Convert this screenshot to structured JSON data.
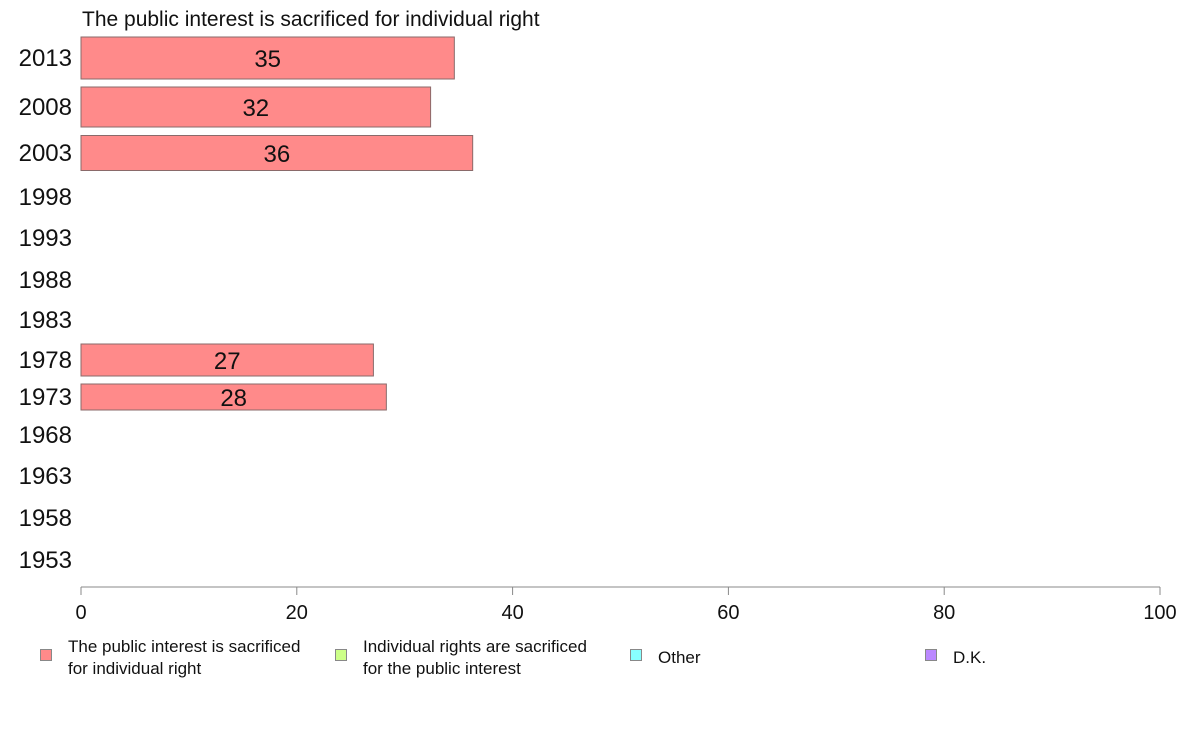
{
  "chart_data": {
    "type": "bar",
    "orientation": "horizontal",
    "title": "The public interest is sacrificed for individual right",
    "categories": [
      "2013",
      "2008",
      "2003",
      "1998",
      "1993",
      "1988",
      "1983",
      "1978",
      "1973",
      "1968",
      "1963",
      "1958",
      "1953"
    ],
    "series": [
      {
        "name": "The public interest is sacrificed for individual right",
        "values": [
          34.6,
          32.4,
          36.3,
          null,
          null,
          null,
          null,
          27.1,
          28.3,
          null,
          null,
          null,
          null
        ],
        "labels": [
          "35",
          "32",
          "36",
          "",
          "",
          "",
          "",
          "27",
          "28",
          "",
          "",
          "",
          ""
        ],
        "color": "#ff8a8a"
      }
    ],
    "xlim": [
      0,
      100
    ],
    "xticks": [
      "0",
      "20",
      "40",
      "60",
      "80",
      "100"
    ],
    "grid": false,
    "legend_position": "bottom"
  },
  "legend": {
    "items": [
      {
        "label": "The public interest is sacrificed\nfor individual right",
        "color": "#ff8a8a"
      },
      {
        "label": "Individual rights are sacrificed\nfor the public interest",
        "color": "#ccff88"
      },
      {
        "label": "Other",
        "color": "#88ffff"
      },
      {
        "label": "D.K.",
        "color": "#bb88ff"
      }
    ]
  }
}
